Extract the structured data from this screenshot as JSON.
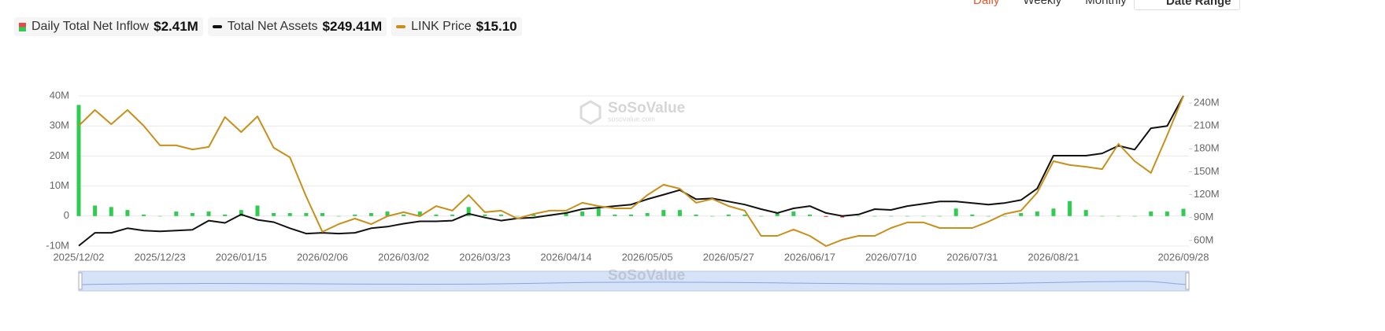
{
  "controls": [
    "Daily",
    "Weekly",
    "Monthly"
  ],
  "date_range": "Date Range",
  "watermark": {
    "brand": "SoSoValue",
    "site": "sosovalue.com"
  },
  "chart_data": {
    "type": "combo",
    "categories": [
      "2025/12/02",
      null,
      null,
      null,
      null,
      "2025/12/23",
      null,
      null,
      null,
      null,
      "2026/01/15",
      null,
      null,
      null,
      null,
      "2026/02/06",
      null,
      null,
      null,
      null,
      "2026/03/02",
      null,
      null,
      null,
      null,
      "2026/03/23",
      null,
      null,
      null,
      null,
      "2026/04/14",
      null,
      null,
      null,
      null,
      "2026/05/05",
      null,
      null,
      null,
      null,
      "2026/05/27",
      null,
      null,
      null,
      null,
      "2026/06/17",
      null,
      null,
      null,
      null,
      "2026/07/10",
      null,
      null,
      null,
      null,
      "2026/07/31",
      null,
      null,
      null,
      null,
      "2026/08/21",
      null,
      null,
      null,
      null,
      null,
      null,
      null,
      "2026/09/28"
    ],
    "series": [
      {
        "name": "Daily Total Net Inflow",
        "value_label": "$2.41M",
        "kind": "bar",
        "axis": "y",
        "color": "#2ecc4f",
        "negative_color": "#e84a4a",
        "values": [
          37,
          3.5,
          3,
          2,
          0.5,
          0,
          1.5,
          1,
          1.5,
          0.5,
          2,
          3.5,
          1,
          1,
          1,
          1,
          0,
          0.5,
          1,
          1.5,
          0.5,
          1.5,
          0.5,
          0.5,
          3,
          0.5,
          0.5,
          0,
          0.5,
          0.5,
          1,
          1.5,
          2.5,
          0.5,
          0.5,
          1,
          2,
          2,
          0.5,
          0,
          0.5,
          0.5,
          0,
          1,
          1.5,
          0.5,
          -0.3,
          -0.5,
          0,
          0,
          0,
          0,
          0,
          0,
          2.5,
          0.5,
          0,
          0,
          1,
          1.5,
          2.5,
          5,
          2,
          0,
          0,
          0,
          1.5,
          1.5,
          2.41
        ]
      },
      {
        "name": "Total Net Assets",
        "value_label": "$249.41M",
        "kind": "line",
        "axis": "y2",
        "color": "#111111",
        "values": [
          53,
          70,
          70,
          76,
          73,
          72,
          73,
          74,
          86,
          83,
          94,
          87,
          84,
          76,
          69,
          70,
          69,
          70,
          76,
          78,
          82,
          85,
          85,
          86,
          95,
          90,
          86,
          89,
          90,
          93,
          96,
          101,
          103,
          105,
          107,
          114,
          120,
          126,
          114,
          115,
          111,
          107,
          101,
          96,
          102,
          105,
          96,
          92,
          94,
          101,
          100,
          105,
          108,
          111,
          111,
          109,
          107,
          109,
          113,
          128,
          171,
          171,
          171,
          174,
          184,
          179,
          207,
          210,
          249.41
        ]
      },
      {
        "name": "LINK Price",
        "value_label": "$15.10",
        "kind": "line",
        "axis": "y3",
        "color": "#c8901a",
        "values": [
          13.55,
          14.37,
          13.63,
          14.37,
          13.55,
          12.53,
          12.53,
          12.32,
          12.45,
          14,
          13.22,
          14.04,
          12.41,
          11.91,
          9.87,
          8.04,
          8.44,
          8.73,
          8.44,
          8.85,
          9.06,
          8.85,
          9.38,
          9.14,
          9.95,
          9.06,
          9.14,
          8.73,
          8.97,
          9.14,
          9.14,
          9.55,
          9.38,
          9.26,
          9.26,
          9.95,
          10.49,
          10.28,
          9.55,
          9.75,
          9.38,
          9.14,
          7.83,
          7.83,
          8.16,
          7.83,
          7.3,
          7.63,
          7.83,
          7.83,
          8.24,
          8.53,
          8.53,
          8.24,
          8.24,
          8.24,
          8.57,
          8.97,
          9.14,
          10.08,
          11.71,
          11.51,
          11.42,
          11.3,
          12.61,
          11.71,
          11.1,
          13.06,
          15.1
        ]
      }
    ],
    "ylim": [
      -10,
      40
    ],
    "yticks": [
      {
        "value": -10,
        "label": "-10M"
      },
      0,
      {
        "value": 10,
        "label": "10M"
      },
      {
        "value": 20,
        "label": "20M"
      },
      {
        "value": 30,
        "label": "30M"
      },
      {
        "value": 40,
        "label": "40M"
      }
    ],
    "y2lim": [
      52.6,
      249.3
    ],
    "y2ticks": [
      {
        "value": 60,
        "label": "60M"
      },
      {
        "value": 90,
        "label": "90M"
      },
      {
        "value": 120,
        "label": "120M"
      },
      {
        "value": 150,
        "label": "150M"
      },
      {
        "value": 180,
        "label": "180M"
      },
      {
        "value": 210,
        "label": "210M"
      },
      {
        "value": 240,
        "label": "240M"
      }
    ],
    "y3lim": [
      7.3,
      15.1
    ],
    "grid": true
  }
}
